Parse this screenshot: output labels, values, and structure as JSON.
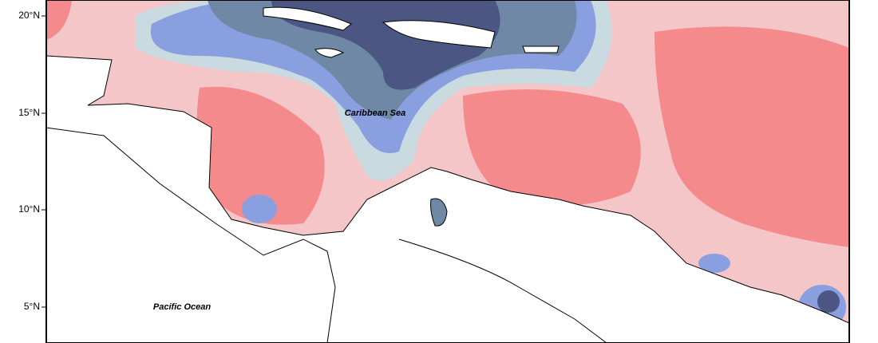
{
  "map": {
    "latitude_labels": [
      "20°N",
      "15°N",
      "10°N",
      "5°N"
    ],
    "places": {
      "sea": "Caribbean Sea",
      "ocean": "Pacific Ocean"
    }
  }
}
